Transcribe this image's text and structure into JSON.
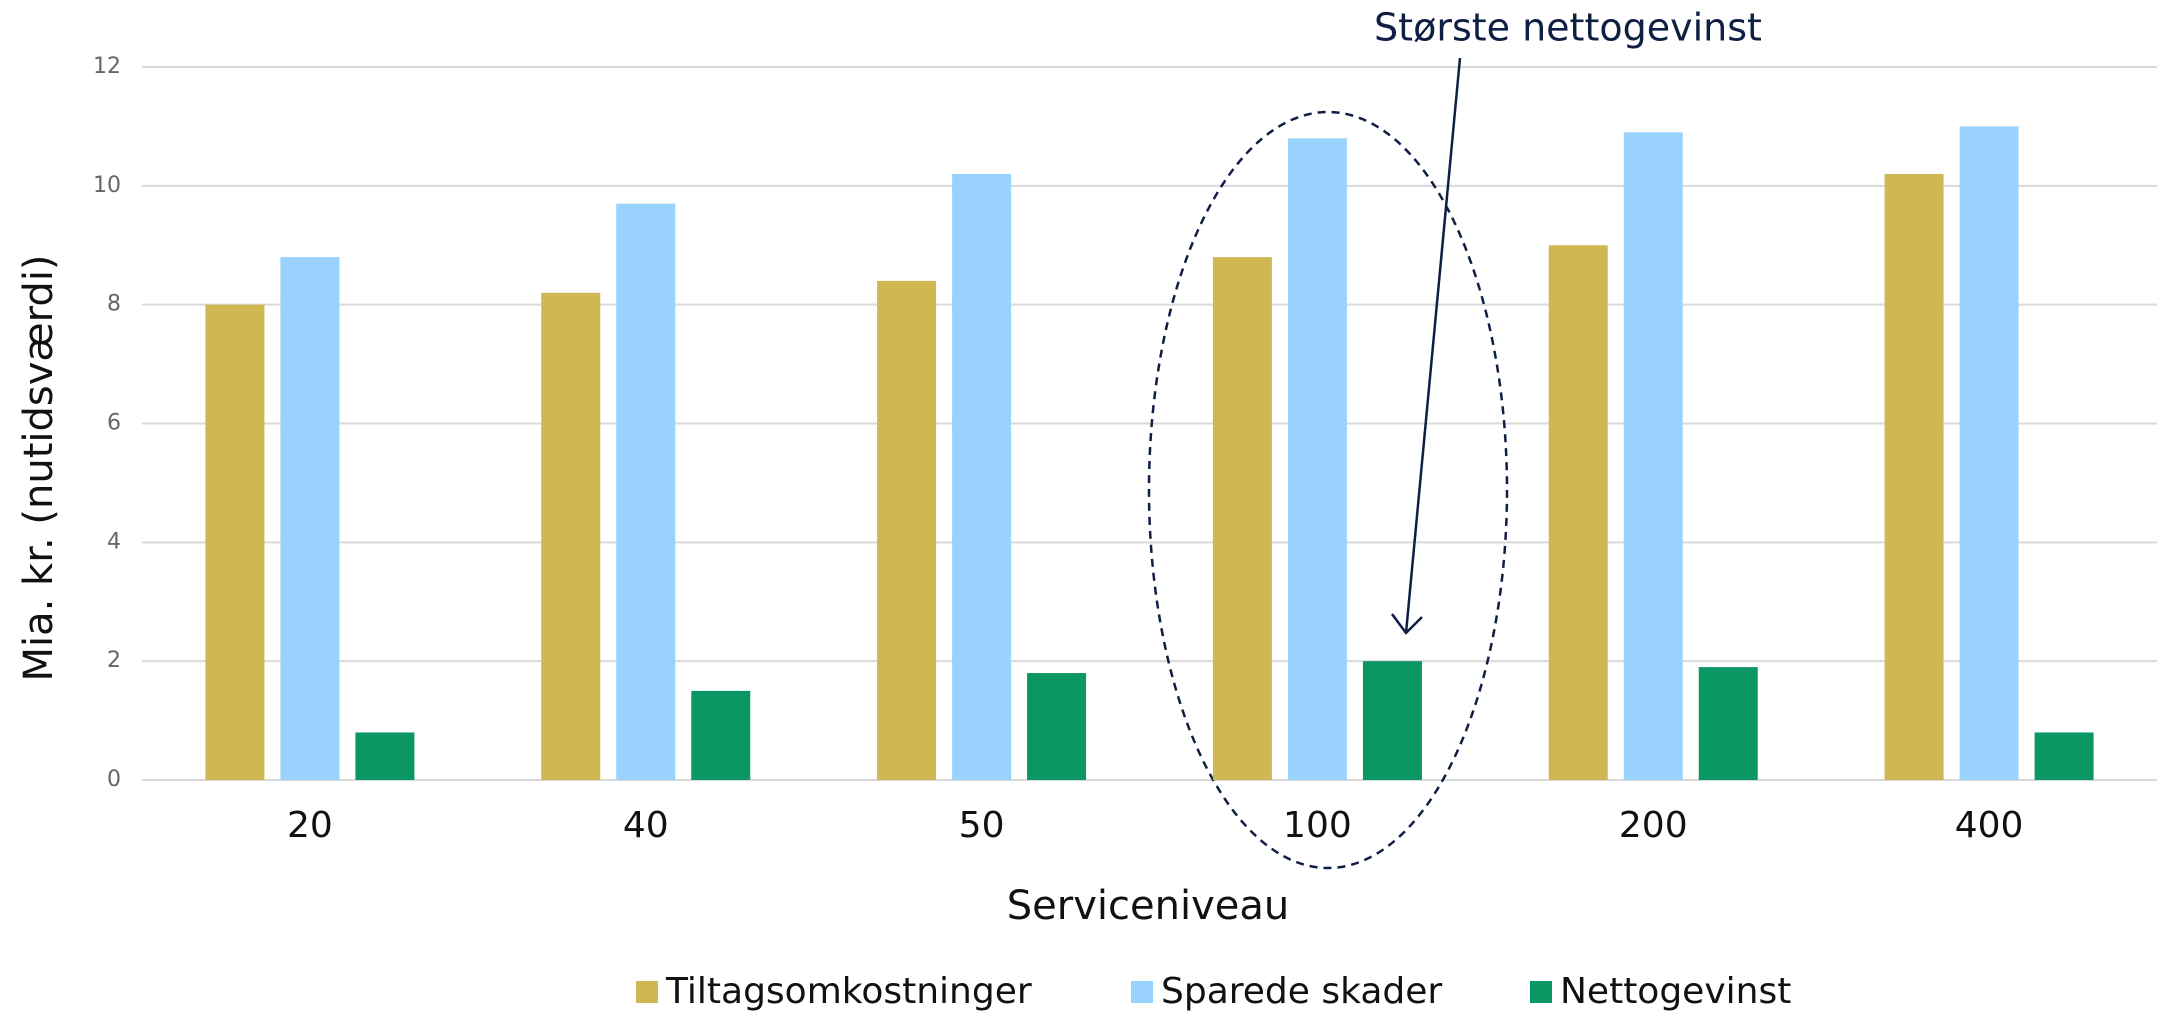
{
  "chart_data": {
    "type": "bar",
    "annotation": "Største nettogevinst",
    "x_label": "Serviceniveau",
    "y_label": "Mia. kr. (nutidsværdi)",
    "categories": [
      "20",
      "40",
      "50",
      "100",
      "200",
      "400"
    ],
    "series": [
      {
        "name": "Tiltagsomkostninger",
        "color": "#d1b752",
        "values": [
          8.0,
          8.2,
          8.4,
          8.8,
          9.0,
          10.2
        ]
      },
      {
        "name": "Sparede skader",
        "color": "#99d3fd",
        "values": [
          8.8,
          9.7,
          10.2,
          10.8,
          10.9,
          11.0
        ]
      },
      {
        "name": "Nettogevinst",
        "color": "#0b9763",
        "values": [
          0.8,
          1.5,
          1.8,
          2.0,
          1.9,
          0.8
        ]
      }
    ],
    "ylim": [
      0,
      12
    ],
    "yticks": [
      0,
      2,
      4,
      6,
      8,
      10,
      12
    ],
    "grid": true,
    "legend": "bottom"
  }
}
